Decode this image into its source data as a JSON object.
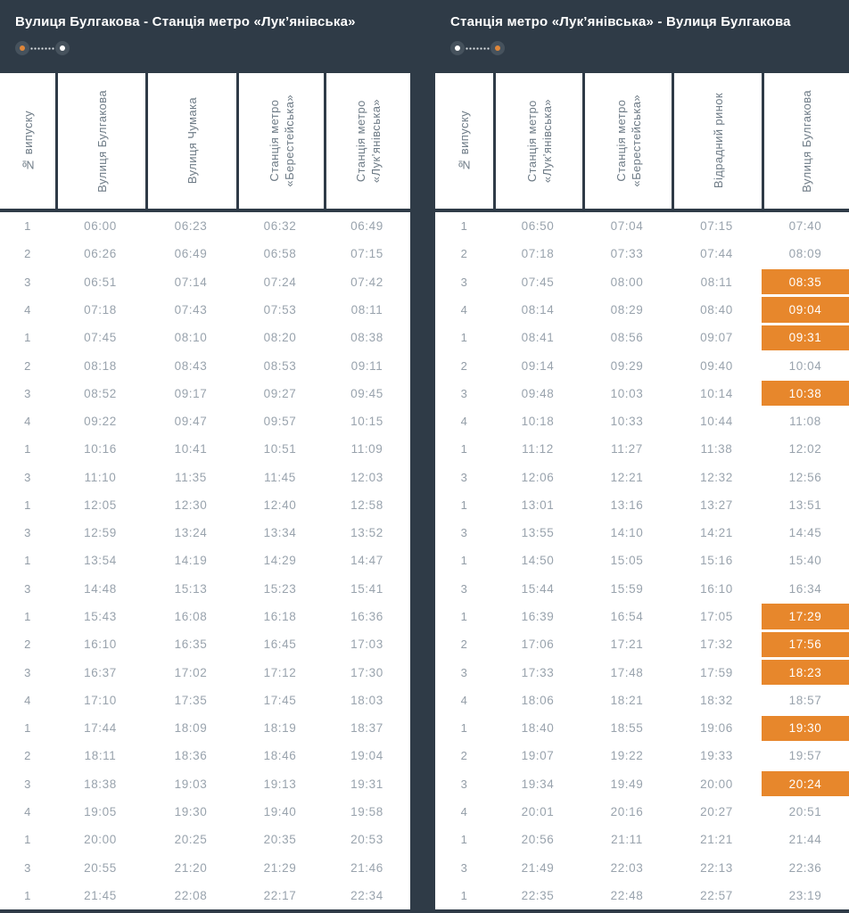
{
  "theme": {
    "page_background": "#2f3b47",
    "table_background": "#ffffff",
    "highlight_orange": "#e7872c",
    "time_text_color": "#99a3ad",
    "header_text_color": "#6e7b86",
    "title_text_color": "#ffffff",
    "endpoint_circle_color": "#46525d"
  },
  "tables": [
    {
      "title": "Вулиця Булгакова - Станція метро «Лук’янівська»",
      "route_indicator": {
        "start_dot_color": "#e0873a",
        "end_dot_color": "#ffffff"
      },
      "columns": [
        "№ випуску",
        "Вулиця Булгакова",
        "Вулиця Чумака",
        "Станція метро\n«Берестейська»",
        "Станція метро\n«Лук’янівська»"
      ],
      "rows": [
        {
          "no": "1",
          "times": [
            "06:00",
            "06:23",
            "06:32",
            "06:49"
          ],
          "highlight_cols": []
        },
        {
          "no": "2",
          "times": [
            "06:26",
            "06:49",
            "06:58",
            "07:15"
          ],
          "highlight_cols": []
        },
        {
          "no": "3",
          "times": [
            "06:51",
            "07:14",
            "07:24",
            "07:42"
          ],
          "highlight_cols": []
        },
        {
          "no": "4",
          "times": [
            "07:18",
            "07:43",
            "07:53",
            "08:11"
          ],
          "highlight_cols": []
        },
        {
          "no": "1",
          "times": [
            "07:45",
            "08:10",
            "08:20",
            "08:38"
          ],
          "highlight_cols": []
        },
        {
          "no": "2",
          "times": [
            "08:18",
            "08:43",
            "08:53",
            "09:11"
          ],
          "highlight_cols": []
        },
        {
          "no": "3",
          "times": [
            "08:52",
            "09:17",
            "09:27",
            "09:45"
          ],
          "highlight_cols": []
        },
        {
          "no": "4",
          "times": [
            "09:22",
            "09:47",
            "09:57",
            "10:15"
          ],
          "highlight_cols": []
        },
        {
          "no": "1",
          "times": [
            "10:16",
            "10:41",
            "10:51",
            "11:09"
          ],
          "highlight_cols": []
        },
        {
          "no": "3",
          "times": [
            "11:10",
            "11:35",
            "11:45",
            "12:03"
          ],
          "highlight_cols": []
        },
        {
          "no": "1",
          "times": [
            "12:05",
            "12:30",
            "12:40",
            "12:58"
          ],
          "highlight_cols": []
        },
        {
          "no": "3",
          "times": [
            "12:59",
            "13:24",
            "13:34",
            "13:52"
          ],
          "highlight_cols": []
        },
        {
          "no": "1",
          "times": [
            "13:54",
            "14:19",
            "14:29",
            "14:47"
          ],
          "highlight_cols": []
        },
        {
          "no": "3",
          "times": [
            "14:48",
            "15:13",
            "15:23",
            "15:41"
          ],
          "highlight_cols": []
        },
        {
          "no": "1",
          "times": [
            "15:43",
            "16:08",
            "16:18",
            "16:36"
          ],
          "highlight_cols": []
        },
        {
          "no": "2",
          "times": [
            "16:10",
            "16:35",
            "16:45",
            "17:03"
          ],
          "highlight_cols": []
        },
        {
          "no": "3",
          "times": [
            "16:37",
            "17:02",
            "17:12",
            "17:30"
          ],
          "highlight_cols": []
        },
        {
          "no": "4",
          "times": [
            "17:10",
            "17:35",
            "17:45",
            "18:03"
          ],
          "highlight_cols": []
        },
        {
          "no": "1",
          "times": [
            "17:44",
            "18:09",
            "18:19",
            "18:37"
          ],
          "highlight_cols": []
        },
        {
          "no": "2",
          "times": [
            "18:11",
            "18:36",
            "18:46",
            "19:04"
          ],
          "highlight_cols": []
        },
        {
          "no": "3",
          "times": [
            "18:38",
            "19:03",
            "19:13",
            "19:31"
          ],
          "highlight_cols": []
        },
        {
          "no": "4",
          "times": [
            "19:05",
            "19:30",
            "19:40",
            "19:58"
          ],
          "highlight_cols": []
        },
        {
          "no": "1",
          "times": [
            "20:00",
            "20:25",
            "20:35",
            "20:53"
          ],
          "highlight_cols": []
        },
        {
          "no": "3",
          "times": [
            "20:55",
            "21:20",
            "21:29",
            "21:46"
          ],
          "highlight_cols": []
        },
        {
          "no": "1",
          "times": [
            "21:45",
            "22:08",
            "22:17",
            "22:34"
          ],
          "highlight_cols": []
        }
      ]
    },
    {
      "title": "Станція метро «Лук’янівська» - Вулиця Булгакова",
      "route_indicator": {
        "start_dot_color": "#ffffff",
        "end_dot_color": "#e0873a"
      },
      "columns": [
        "№ випуску",
        "Станція метро\n«Лук’янівська»",
        "Станція метро\n«Берестейська»",
        "Відрадний ринок",
        "Вулиця Булгакова"
      ],
      "rows": [
        {
          "no": "1",
          "times": [
            "06:50",
            "07:04",
            "07:15",
            "07:40"
          ],
          "highlight_cols": []
        },
        {
          "no": "2",
          "times": [
            "07:18",
            "07:33",
            "07:44",
            "08:09"
          ],
          "highlight_cols": []
        },
        {
          "no": "3",
          "times": [
            "07:45",
            "08:00",
            "08:11",
            "08:35"
          ],
          "highlight_cols": [
            3
          ]
        },
        {
          "no": "4",
          "times": [
            "08:14",
            "08:29",
            "08:40",
            "09:04"
          ],
          "highlight_cols": [
            3
          ]
        },
        {
          "no": "1",
          "times": [
            "08:41",
            "08:56",
            "09:07",
            "09:31"
          ],
          "highlight_cols": [
            3
          ]
        },
        {
          "no": "2",
          "times": [
            "09:14",
            "09:29",
            "09:40",
            "10:04"
          ],
          "highlight_cols": []
        },
        {
          "no": "3",
          "times": [
            "09:48",
            "10:03",
            "10:14",
            "10:38"
          ],
          "highlight_cols": [
            3
          ]
        },
        {
          "no": "4",
          "times": [
            "10:18",
            "10:33",
            "10:44",
            "11:08"
          ],
          "highlight_cols": []
        },
        {
          "no": "1",
          "times": [
            "11:12",
            "11:27",
            "11:38",
            "12:02"
          ],
          "highlight_cols": []
        },
        {
          "no": "3",
          "times": [
            "12:06",
            "12:21",
            "12:32",
            "12:56"
          ],
          "highlight_cols": []
        },
        {
          "no": "1",
          "times": [
            "13:01",
            "13:16",
            "13:27",
            "13:51"
          ],
          "highlight_cols": []
        },
        {
          "no": "3",
          "times": [
            "13:55",
            "14:10",
            "14:21",
            "14:45"
          ],
          "highlight_cols": []
        },
        {
          "no": "1",
          "times": [
            "14:50",
            "15:05",
            "15:16",
            "15:40"
          ],
          "highlight_cols": []
        },
        {
          "no": "3",
          "times": [
            "15:44",
            "15:59",
            "16:10",
            "16:34"
          ],
          "highlight_cols": []
        },
        {
          "no": "1",
          "times": [
            "16:39",
            "16:54",
            "17:05",
            "17:29"
          ],
          "highlight_cols": [
            3
          ]
        },
        {
          "no": "2",
          "times": [
            "17:06",
            "17:21",
            "17:32",
            "17:56"
          ],
          "highlight_cols": [
            3
          ]
        },
        {
          "no": "3",
          "times": [
            "17:33",
            "17:48",
            "17:59",
            "18:23"
          ],
          "highlight_cols": [
            3
          ]
        },
        {
          "no": "4",
          "times": [
            "18:06",
            "18:21",
            "18:32",
            "18:57"
          ],
          "highlight_cols": []
        },
        {
          "no": "1",
          "times": [
            "18:40",
            "18:55",
            "19:06",
            "19:30"
          ],
          "highlight_cols": [
            3
          ]
        },
        {
          "no": "2",
          "times": [
            "19:07",
            "19:22",
            "19:33",
            "19:57"
          ],
          "highlight_cols": []
        },
        {
          "no": "3",
          "times": [
            "19:34",
            "19:49",
            "20:00",
            "20:24"
          ],
          "highlight_cols": [
            3
          ]
        },
        {
          "no": "4",
          "times": [
            "20:01",
            "20:16",
            "20:27",
            "20:51"
          ],
          "highlight_cols": []
        },
        {
          "no": "1",
          "times": [
            "20:56",
            "21:11",
            "21:21",
            "21:44"
          ],
          "highlight_cols": []
        },
        {
          "no": "3",
          "times": [
            "21:49",
            "22:03",
            "22:13",
            "22:36"
          ],
          "highlight_cols": []
        },
        {
          "no": "1",
          "times": [
            "22:35",
            "22:48",
            "22:57",
            "23:19"
          ],
          "highlight_cols": []
        }
      ]
    }
  ]
}
